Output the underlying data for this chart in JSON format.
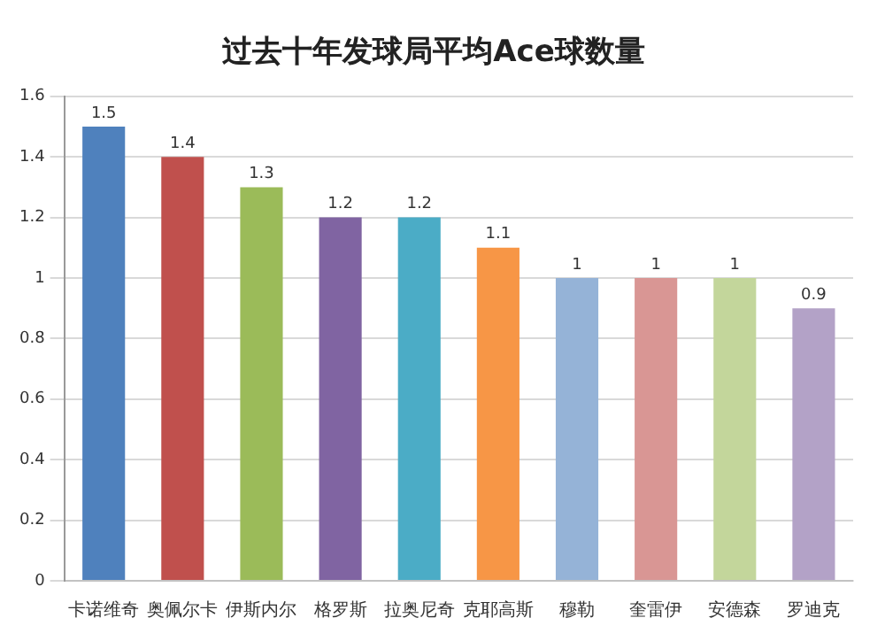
{
  "chart_data": {
    "type": "bar",
    "title": "过去十年发球局平均Ace球数量",
    "categories": [
      "卡诺维奇",
      "奥佩尔卡",
      "伊斯内尔",
      "格罗斯",
      "拉奥尼奇",
      "克耶高斯",
      "穆勒",
      "奎雷伊",
      "安德森",
      "罗迪克"
    ],
    "values": [
      1.5,
      1.4,
      1.3,
      1.2,
      1.2,
      1.1,
      1,
      1,
      1,
      0.9
    ],
    "colors": [
      "#4f81bd",
      "#c0504d",
      "#9bbb59",
      "#8064a2",
      "#4bacc6",
      "#f79646",
      "#95b3d7",
      "#d99694",
      "#c3d69b",
      "#b3a2c7"
    ],
    "ylim": [
      0,
      1.6
    ],
    "yticks": [
      0,
      0.2,
      0.4,
      0.6,
      0.8,
      1,
      1.2,
      1.4,
      1.6
    ],
    "grid": "y",
    "data_labels": true,
    "legend": false
  }
}
